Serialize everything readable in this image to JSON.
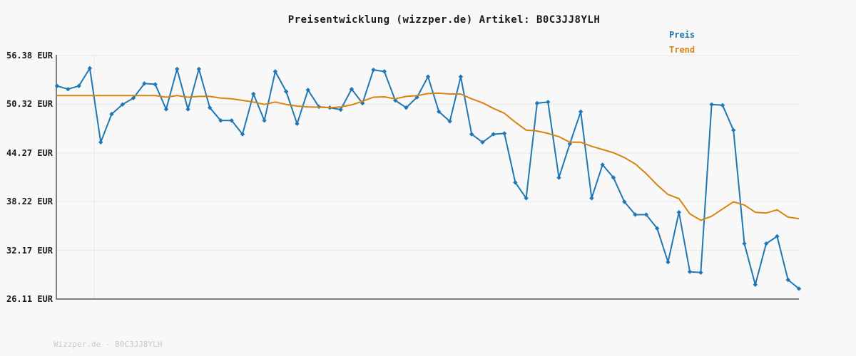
{
  "chart_data": {
    "type": "line",
    "title": "Preisentwicklung (wizzper.de) Artikel: B0C3JJ8YLH",
    "xlabel": "",
    "ylabel": "",
    "x_axis_note": "unlabeled time samples, 69 points",
    "ylim": [
      26.11,
      56.38
    ],
    "yticks": [
      56.38,
      50.32,
      44.27,
      38.22,
      32.17,
      26.11
    ],
    "ytick_labels": [
      "56.38 EUR",
      "50.32 EUR",
      "44.27 EUR",
      "38.22 EUR",
      "32.17 EUR",
      "26.11 EUR"
    ],
    "grid": "horizontal",
    "legend_position": "top-right",
    "series": [
      {
        "name": "Preis",
        "color": "#1f77b4",
        "marker": "diamond",
        "values": [
          52.6,
          52.2,
          52.6,
          54.8,
          45.6,
          49.1,
          50.3,
          51.1,
          52.9,
          52.8,
          49.7,
          54.7,
          49.7,
          54.7,
          49.9,
          48.3,
          48.3,
          46.6,
          51.6,
          48.3,
          54.4,
          51.9,
          47.9,
          52.1,
          50.0,
          49.9,
          49.65,
          52.2,
          50.45,
          54.6,
          54.4,
          50.8,
          49.9,
          51.2,
          53.75,
          49.4,
          48.2,
          53.75,
          46.6,
          45.6,
          46.6,
          46.7,
          40.6,
          38.65,
          50.45,
          50.6,
          41.2,
          45.4,
          49.4,
          38.65,
          42.8,
          41.2,
          38.2,
          36.6,
          36.6,
          34.9,
          30.7,
          36.9,
          29.5,
          29.4,
          50.3,
          50.2,
          47.1,
          33.0,
          27.9,
          33.0,
          33.9,
          28.5,
          27.4
        ]
      },
      {
        "name": "Trend",
        "color": "#d9820f",
        "marker": "none",
        "values": [
          51.4,
          51.4,
          51.4,
          51.4,
          51.4,
          51.4,
          51.4,
          51.4,
          51.4,
          51.4,
          51.2,
          51.4,
          51.2,
          51.3,
          51.3,
          51.1,
          51.0,
          50.8,
          50.6,
          50.3,
          50.6,
          50.3,
          50.1,
          50.0,
          49.95,
          49.9,
          50.0,
          50.25,
          50.7,
          51.2,
          51.25,
          51.0,
          51.3,
          51.4,
          51.65,
          51.7,
          51.6,
          51.6,
          51.0,
          50.5,
          49.8,
          49.2,
          48.1,
          47.1,
          47.0,
          46.7,
          46.3,
          45.6,
          45.6,
          45.1,
          44.7,
          44.3,
          43.7,
          42.9,
          41.7,
          40.3,
          39.1,
          38.6,
          36.7,
          35.9,
          36.4,
          37.3,
          38.2,
          37.8,
          36.9,
          36.8,
          37.2,
          36.3,
          36.1
        ]
      }
    ]
  },
  "footer": {
    "watermark": "Wizzper.de - B0C3JJ8YLH"
  },
  "colors": {
    "background": "#f8f8f8",
    "grid": "#e7e7e7",
    "spine": "#7f7f7f",
    "title_text": "#1a1a1a",
    "tick_text": "#1c1c1c",
    "watermark_text": "#c8c8c8",
    "preis_blue": "#1f77b4",
    "trend_orange": "#d9820f"
  }
}
